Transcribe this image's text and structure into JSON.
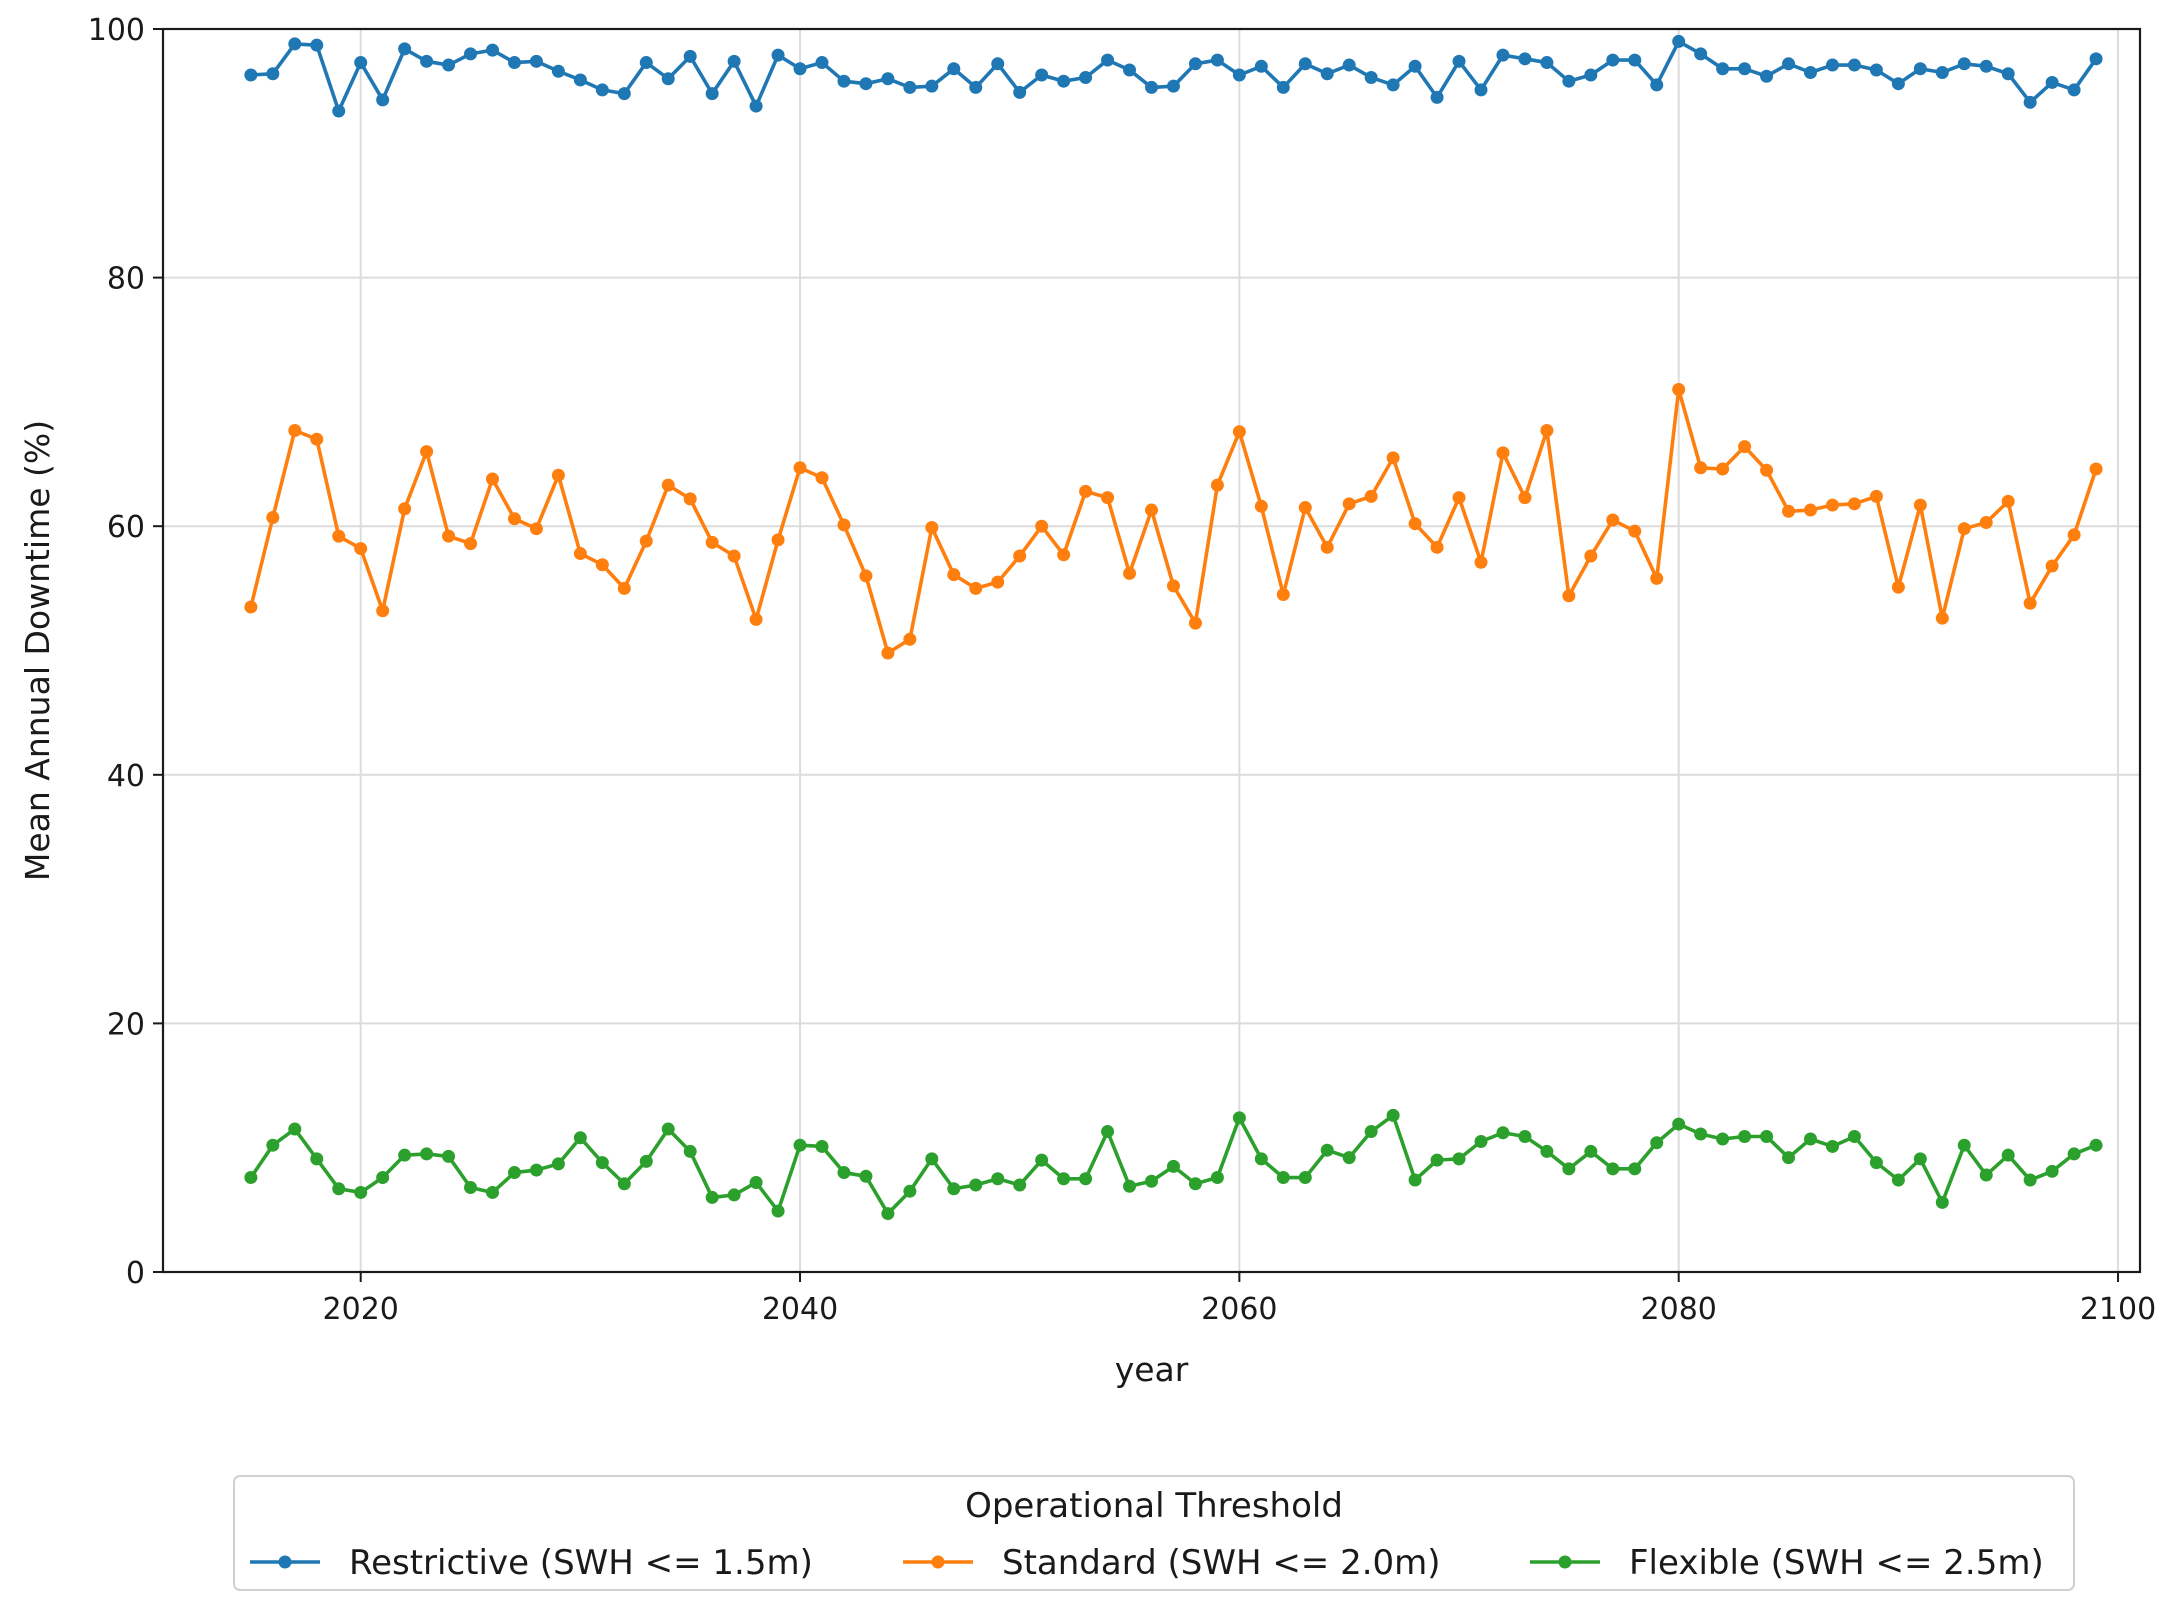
{
  "chart_data": {
    "type": "line",
    "title": "",
    "xlabel": "year",
    "ylabel": "Mean Annual Downtime (%)",
    "xlim": [
      2011,
      2101
    ],
    "ylim": [
      0,
      100
    ],
    "xticks": [
      2020,
      2040,
      2060,
      2080,
      2100
    ],
    "xtick_labels": [
      "2020",
      "2040",
      "2060",
      "2080",
      "2100"
    ],
    "yticks": [
      0,
      20,
      40,
      60,
      80,
      100
    ],
    "ytick_labels": [
      "0",
      "20",
      "40",
      "60",
      "80",
      "100"
    ],
    "grid": true,
    "legend": {
      "title": "Operational Threshold",
      "position": "bottom-center, below plot"
    },
    "x": [
      2015,
      2016,
      2017,
      2018,
      2019,
      2020,
      2021,
      2022,
      2023,
      2024,
      2025,
      2026,
      2027,
      2028,
      2029,
      2030,
      2031,
      2032,
      2033,
      2034,
      2035,
      2036,
      2037,
      2038,
      2039,
      2040,
      2041,
      2042,
      2043,
      2044,
      2045,
      2046,
      2047,
      2048,
      2049,
      2050,
      2051,
      2052,
      2053,
      2054,
      2055,
      2056,
      2057,
      2058,
      2059,
      2060,
      2061,
      2062,
      2063,
      2064,
      2065,
      2066,
      2067,
      2068,
      2069,
      2070,
      2071,
      2072,
      2073,
      2074,
      2075,
      2076,
      2077,
      2078,
      2079,
      2080,
      2081,
      2082,
      2083,
      2084,
      2085,
      2086,
      2087,
      2088,
      2089,
      2090,
      2091,
      2092,
      2093,
      2094,
      2095,
      2096,
      2097,
      2098,
      2099
    ],
    "series": [
      {
        "name": "Restrictive (SWH <= 1.5m)",
        "color": "#1f77b4",
        "values": [
          96.3,
          96.4,
          98.8,
          98.7,
          93.4,
          97.3,
          94.3,
          98.4,
          97.4,
          97.1,
          98.0,
          98.3,
          97.3,
          97.4,
          96.6,
          95.9,
          95.1,
          94.8,
          97.3,
          96.0,
          97.8,
          94.8,
          97.4,
          93.8,
          97.9,
          96.8,
          97.3,
          95.8,
          95.6,
          96.0,
          95.3,
          95.4,
          96.8,
          95.3,
          97.2,
          94.9,
          96.3,
          95.8,
          96.1,
          97.5,
          96.7,
          95.3,
          95.4,
          97.2,
          97.5,
          96.3,
          97.0,
          95.3,
          97.2,
          96.4,
          97.1,
          96.1,
          95.5,
          97.0,
          94.5,
          97.4,
          95.1,
          97.9,
          97.6,
          97.3,
          95.8,
          96.3,
          97.5,
          97.5,
          95.5,
          99.0,
          98.0,
          96.8,
          96.8,
          96.2,
          97.2,
          96.5,
          97.1,
          97.1,
          96.7,
          95.6,
          96.8,
          96.5,
          97.2,
          97.0,
          96.4,
          94.1,
          95.7,
          95.1,
          97.6
        ]
      },
      {
        "name": "Standard (SWH <= 2.0m)",
        "color": "#ff7f0e",
        "values": [
          53.5,
          60.7,
          67.7,
          67.0,
          59.2,
          58.2,
          53.2,
          61.4,
          66.0,
          59.2,
          58.6,
          63.8,
          60.6,
          59.8,
          64.1,
          57.8,
          56.9,
          55.0,
          58.8,
          63.3,
          62.2,
          58.7,
          57.6,
          52.5,
          58.9,
          64.7,
          63.9,
          60.1,
          56.0,
          49.8,
          50.9,
          59.9,
          56.1,
          55.0,
          55.5,
          57.6,
          60.0,
          57.7,
          62.8,
          62.3,
          56.2,
          61.3,
          55.2,
          52.2,
          63.3,
          67.6,
          61.6,
          54.5,
          61.5,
          58.3,
          61.8,
          62.4,
          65.5,
          60.2,
          58.3,
          62.3,
          57.1,
          65.9,
          62.3,
          67.7,
          54.4,
          57.6,
          60.5,
          59.6,
          55.8,
          71.0,
          64.7,
          64.6,
          66.4,
          64.5,
          61.2,
          61.3,
          61.7,
          61.8,
          62.4,
          55.1,
          61.7,
          52.6,
          59.8,
          60.3,
          62.0,
          53.8,
          56.8,
          59.3,
          64.6
        ]
      },
      {
        "name": "Flexible (SWH <= 2.5m)",
        "color": "#2ca02c",
        "values": [
          7.6,
          10.2,
          11.5,
          9.1,
          6.7,
          6.4,
          7.6,
          9.4,
          9.5,
          9.3,
          6.8,
          6.4,
          8.0,
          8.2,
          8.7,
          10.8,
          8.8,
          7.1,
          8.9,
          11.5,
          9.7,
          6.0,
          6.2,
          7.2,
          4.9,
          10.2,
          10.1,
          8.0,
          7.7,
          4.7,
          6.5,
          9.1,
          6.7,
          7.0,
          7.5,
          7.0,
          9.0,
          7.5,
          7.5,
          11.3,
          6.9,
          7.3,
          8.5,
          7.1,
          7.6,
          12.4,
          9.1,
          7.6,
          7.6,
          9.8,
          9.2,
          11.3,
          12.6,
          7.4,
          9.0,
          9.1,
          10.5,
          11.2,
          10.9,
          9.7,
          8.3,
          9.7,
          8.3,
          8.3,
          10.4,
          11.9,
          11.1,
          10.7,
          10.9,
          10.9,
          9.2,
          10.7,
          10.1,
          10.9,
          8.8,
          7.4,
          9.1,
          5.6,
          10.2,
          7.8,
          9.4,
          7.4,
          8.1,
          9.5,
          10.2
        ]
      }
    ]
  }
}
